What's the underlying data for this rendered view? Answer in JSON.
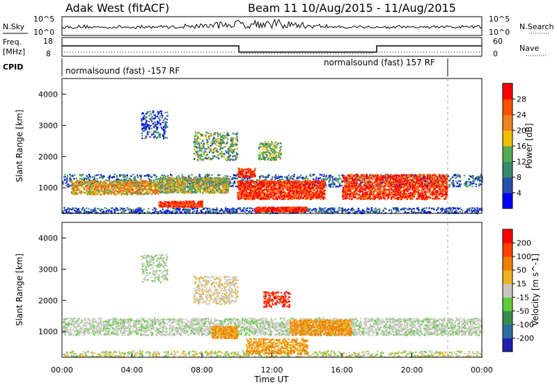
{
  "header": {
    "station": "Adak West (fitACF)",
    "beam_range": "Beam 11  10/Aug/2015 - 11/Aug/2015"
  },
  "top_panels": {
    "nsky_label": "N.Sky",
    "nsearch_label": "N.Search",
    "nsky_ticks": [
      "10^5",
      "10^0"
    ],
    "nsearch_ticks": [
      "10^5",
      "10^0"
    ],
    "freq_label_1": "Freq.",
    "freq_label_2": "[MHz]",
    "freq_ticks": [
      "18",
      "8"
    ],
    "nave_label": "Nave",
    "nave_ticks": [
      "60",
      "0"
    ],
    "cpid_label": "CPID",
    "cpid_segments": [
      "normalsound (fast) -157 RF",
      "normalsound (fast) 157 RF"
    ]
  },
  "chart_data": [
    {
      "type": "heatmap",
      "title": "",
      "ylabel": "Slant Range [km]",
      "xlabel": "",
      "yticks": [
        "4000",
        "3000",
        "2000",
        "1000"
      ],
      "ylim": [
        180,
        4500
      ],
      "xlim": [
        0,
        24
      ],
      "colorbar": {
        "label": "Power [dB]",
        "ticks": [
          "28",
          "24",
          "20",
          "16",
          "12",
          "8",
          "4"
        ],
        "colors": [
          "#0000ff",
          "#2550a8",
          "#3a8a6a",
          "#55aa55",
          "#f0c000",
          "#f08020",
          "#ff5000",
          "#ff0000"
        ]
      }
    },
    {
      "type": "heatmap",
      "title": "",
      "ylabel": "Slant Range [km]",
      "xlabel": "Time UT",
      "xticks": [
        "00:00",
        "04:00",
        "08:00",
        "12:00",
        "16:00",
        "20:00",
        "00:00"
      ],
      "yticks": [
        "4000",
        "3000",
        "2000",
        "1000"
      ],
      "ylim": [
        180,
        4500
      ],
      "xlim": [
        0,
        24
      ],
      "colorbar": {
        "label": "Velocity [m s^-1]",
        "ticks": [
          "200",
          "100",
          "50",
          "15",
          "-15",
          "-50",
          "-100",
          "-200"
        ],
        "colors": [
          "#2020b0",
          "#2e6e9e",
          "#3a8a50",
          "#60cc40",
          "#c8c8c0",
          "#f0b020",
          "#f08000",
          "#ff4000",
          "#ff0000"
        ]
      }
    }
  ]
}
